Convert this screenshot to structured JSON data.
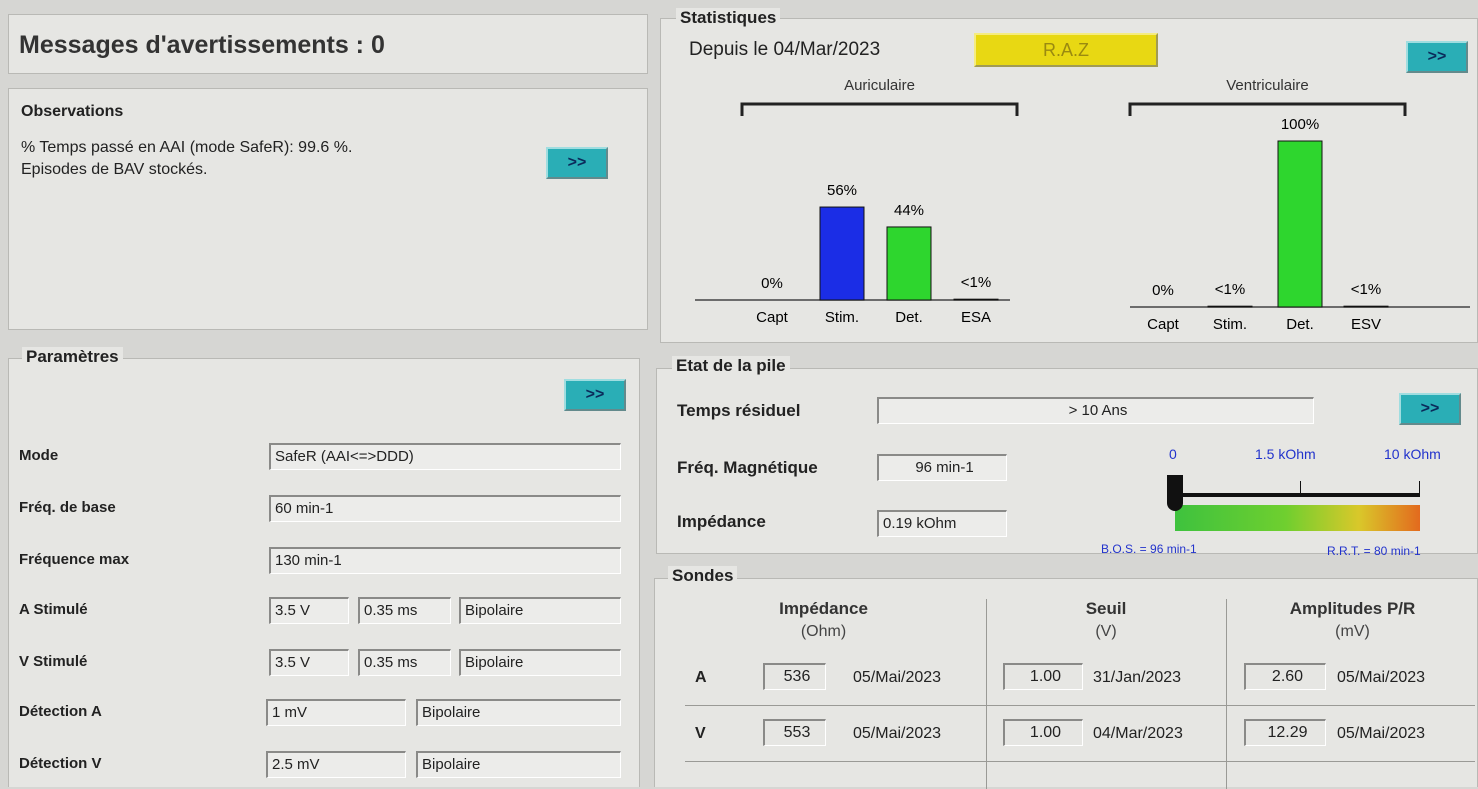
{
  "warnings": {
    "title": "Messages d'avertissements : 0"
  },
  "observations": {
    "title": "Observations",
    "lines": [
      "% Temps passé en AAI (mode SafeR): 99.6 %.",
      "Episodes de BAV stockés."
    ],
    "button": ">>"
  },
  "parameters": {
    "title": "Paramètres",
    "button": ">>",
    "rows": [
      {
        "label": "Mode",
        "fields": [
          "SafeR (AAI<=>DDD)"
        ]
      },
      {
        "label": "Fréq. de base",
        "fields": [
          "60 min-1"
        ]
      },
      {
        "label": "Fréquence max",
        "fields": [
          "130 min-1"
        ]
      },
      {
        "label": "A Stimulé",
        "fields": [
          "3.5 V",
          "0.35 ms",
          "Bipolaire"
        ]
      },
      {
        "label": "V Stimulé",
        "fields": [
          "3.5 V",
          "0.35 ms",
          "Bipolaire"
        ]
      },
      {
        "label": "Détection A",
        "fields": [
          "1 mV",
          "Bipolaire"
        ]
      },
      {
        "label": "Détection V",
        "fields": [
          "2.5 mV",
          "Bipolaire"
        ]
      }
    ]
  },
  "statistics": {
    "title": "Statistiques",
    "since": "Depuis le 04/Mar/2023",
    "reset": "R.A.Z",
    "button": ">>",
    "charts": [
      {
        "type": "bar",
        "title": "Auriculaire",
        "categories": [
          "Capt",
          "Stim.",
          "Det.",
          "ESA"
        ],
        "values": [
          0,
          56,
          44,
          0.5
        ],
        "value_labels": [
          "0%",
          "56%",
          "44%",
          "<1%"
        ],
        "colors": [
          "#111111",
          "#1b2de6",
          "#2ed62e",
          "#111111"
        ]
      },
      {
        "type": "bar",
        "title": "Ventriculaire",
        "categories": [
          "Capt",
          "Stim.",
          "Det.",
          "ESV"
        ],
        "values": [
          0,
          0.5,
          100,
          0.5
        ],
        "value_labels": [
          "0%",
          "<1%",
          "100%",
          "<1%"
        ],
        "colors": [
          "#111111",
          "#111111",
          "#2ed62e",
          "#111111"
        ]
      }
    ]
  },
  "battery": {
    "title": "Etat de la pile",
    "button": ">>",
    "rows": [
      {
        "label": "Temps résiduel",
        "value": "> 10 Ans"
      },
      {
        "label": "Fréq. Magnétique",
        "value": "96 min-1"
      },
      {
        "label": "Impédance",
        "value": "0.19 kOhm"
      }
    ],
    "gauge_labels": [
      "0",
      "1.5 kOhm",
      "10 kOhm"
    ],
    "bos": "B.O.S. = 96 min-1",
    "rrt": "R.R.T. = 80 min-1"
  },
  "leads": {
    "title": "Sondes",
    "columns": [
      {
        "title": "Impédance",
        "unit": "(Ohm)"
      },
      {
        "title": "Seuil",
        "unit": "(V)"
      },
      {
        "title": "Amplitudes P/R",
        "unit": "(mV)"
      }
    ],
    "rows": [
      {
        "label": "A",
        "cells": [
          [
            "536",
            "05/Mai/2023"
          ],
          [
            "1.00",
            "31/Jan/2023"
          ],
          [
            "2.60",
            "05/Mai/2023"
          ]
        ]
      },
      {
        "label": "V",
        "cells": [
          [
            "553",
            "05/Mai/2023"
          ],
          [
            "1.00",
            "04/Mar/2023"
          ],
          [
            "12.29",
            "05/Mai/2023"
          ]
        ]
      }
    ]
  }
}
